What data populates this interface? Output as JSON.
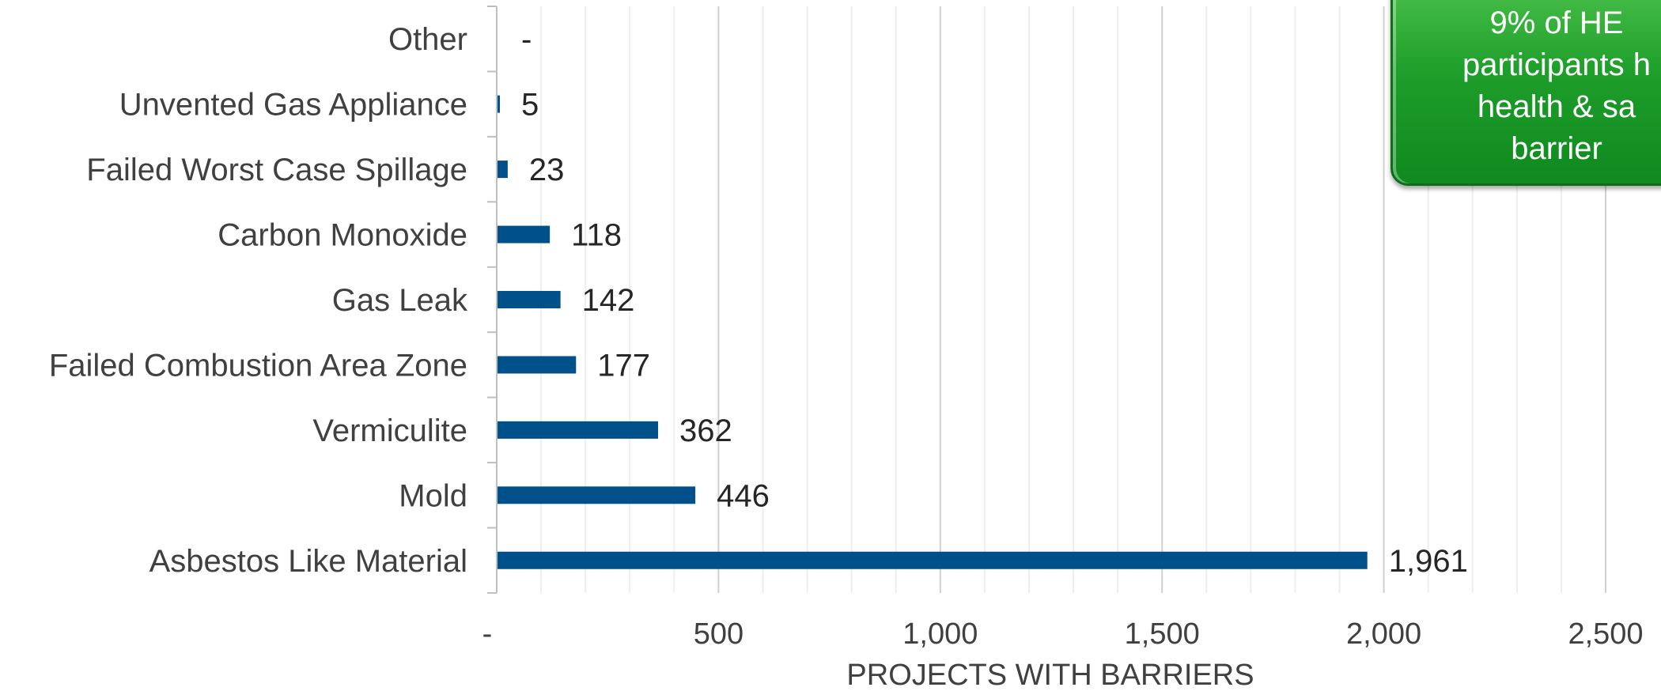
{
  "chart_data": {
    "type": "bar",
    "orientation": "horizontal",
    "categories": [
      "Other",
      "Unvented Gas Appliance",
      "Failed Worst Case Spillage",
      "Carbon Monoxide",
      "Gas Leak",
      "Failed Combustion Area Zone",
      "Vermiculite",
      "Mold",
      "Asbestos Like Material"
    ],
    "values": [
      0,
      5,
      23,
      118,
      142,
      177,
      362,
      446,
      1961
    ],
    "value_labels": [
      "-",
      "5",
      "23",
      "118",
      "142",
      "177",
      "362",
      "446",
      "1,961"
    ],
    "xlabel": "PROJECTS WITH BARRIERS",
    "xlim": [
      0,
      2500
    ],
    "x_ticks": [
      0,
      500,
      1000,
      1500,
      2000,
      2500
    ],
    "x_tick_labels": [
      "-",
      "500",
      "1,000",
      "1,500",
      "2,000",
      "2,500"
    ],
    "grid": true,
    "bar_color": "#00518a"
  },
  "callout": {
    "lines": [
      "9% of HE",
      "participants h",
      "health & sa",
      "barrier"
    ],
    "color": "#1e9e2a"
  }
}
